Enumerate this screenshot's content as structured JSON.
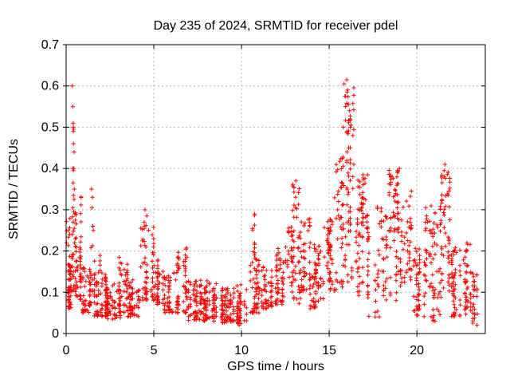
{
  "chart_data": {
    "type": "scatter",
    "title": "Day 235 of 2024, SRMTID for receiver pdel",
    "xlabel": "GPS time / hours",
    "ylabel": "SRMTID / TECUs",
    "xlim": [
      0,
      23.9
    ],
    "ylim": [
      0,
      0.7
    ],
    "xticks": {
      "values": [
        0,
        5,
        10,
        15,
        20
      ],
      "labels": [
        "0",
        "5",
        "10",
        "15",
        "20"
      ]
    },
    "yticks": {
      "values": [
        0,
        0.1,
        0.2,
        0.3,
        0.4,
        0.5,
        0.6,
        0.7
      ],
      "labels": [
        "0",
        "0.1",
        "0.2",
        "0.3",
        "0.4",
        "0.5",
        "0.6",
        "0.7"
      ]
    },
    "grid": true,
    "legend": "none",
    "marker": "plus",
    "marker_color": "#ff0000",
    "grid_color": "#b0b0b0",
    "axis_color": "#000000",
    "background_color": "#ffffff",
    "seed": 235,
    "series": [
      {
        "name": "SRMTID for receiver pdel",
        "encoding": "density_bins",
        "bin_format": [
          "x_start_hr",
          "x_end_hr",
          "y_min_TECU",
          "y_max_TECU",
          "point_count",
          "low_bias_exponent"
        ],
        "bins": [
          [
            0.0,
            0.3,
            0.06,
            0.17,
            55,
            1.3
          ],
          [
            0.0,
            0.3,
            0.17,
            0.28,
            10,
            1.0
          ],
          [
            0.3,
            0.6,
            0.1,
            0.3,
            28,
            1.2
          ],
          [
            0.55,
            0.9,
            0.08,
            0.22,
            32,
            1.5
          ],
          [
            0.6,
            0.95,
            0.22,
            0.35,
            8,
            1.0
          ],
          [
            0.9,
            1.4,
            0.05,
            0.16,
            48,
            1.4
          ],
          [
            1.4,
            1.65,
            0.07,
            0.22,
            16,
            1.2
          ],
          [
            1.6,
            2.3,
            0.04,
            0.15,
            68,
            1.4
          ],
          [
            1.8,
            2.05,
            0.15,
            0.19,
            5,
            1.0
          ],
          [
            2.3,
            3.1,
            0.03,
            0.12,
            72,
            1.3
          ],
          [
            3.0,
            3.5,
            0.05,
            0.19,
            38,
            1.5
          ],
          [
            3.5,
            4.2,
            0.04,
            0.14,
            58,
            1.4
          ],
          [
            4.2,
            5.0,
            0.08,
            0.27,
            58,
            1.8
          ],
          [
            5.0,
            5.6,
            0.07,
            0.18,
            42,
            1.5
          ],
          [
            5.6,
            6.1,
            0.05,
            0.14,
            42,
            1.3
          ],
          [
            6.1,
            6.9,
            0.05,
            0.21,
            58,
            1.7
          ],
          [
            6.9,
            7.7,
            0.03,
            0.13,
            68,
            1.4
          ],
          [
            7.7,
            8.7,
            0.03,
            0.13,
            82,
            1.5
          ],
          [
            8.7,
            9.7,
            0.025,
            0.11,
            82,
            1.4
          ],
          [
            9.7,
            10.3,
            0.02,
            0.12,
            52,
            1.3
          ],
          [
            10.3,
            11.1,
            0.05,
            0.2,
            58,
            1.6
          ],
          [
            10.5,
            11.1,
            0.2,
            0.29,
            8,
            1.0
          ],
          [
            11.1,
            11.8,
            0.06,
            0.17,
            52,
            1.4
          ],
          [
            11.8,
            12.5,
            0.07,
            0.21,
            52,
            1.4
          ],
          [
            12.5,
            12.9,
            0.1,
            0.26,
            28,
            1.2
          ],
          [
            12.9,
            13.4,
            0.07,
            0.37,
            52,
            1.0
          ],
          [
            13.4,
            13.9,
            0.1,
            0.28,
            38,
            1.3
          ],
          [
            13.9,
            14.7,
            0.06,
            0.22,
            62,
            1.4
          ],
          [
            14.7,
            15.3,
            0.1,
            0.28,
            52,
            0.9
          ],
          [
            15.3,
            15.85,
            0.1,
            0.43,
            45,
            1.1
          ],
          [
            15.85,
            16.45,
            0.2,
            0.6,
            55,
            1.0
          ],
          [
            15.85,
            16.45,
            0.12,
            0.2,
            10,
            1.0
          ],
          [
            16.45,
            17.2,
            0.25,
            0.385,
            42,
            0.9
          ],
          [
            16.45,
            17.4,
            0.08,
            0.25,
            32,
            1.2
          ],
          [
            17.2,
            17.95,
            0.04,
            0.27,
            30,
            1.5
          ],
          [
            17.6,
            18.0,
            0.25,
            0.32,
            8,
            1.0
          ],
          [
            17.95,
            18.35,
            0.08,
            0.3,
            24,
            1.2
          ],
          [
            18.35,
            19.1,
            0.22,
            0.4,
            52,
            0.9
          ],
          [
            18.35,
            19.1,
            0.08,
            0.22,
            20,
            1.2
          ],
          [
            19.1,
            19.75,
            0.12,
            0.35,
            42,
            1.1
          ],
          [
            19.75,
            20.45,
            0.04,
            0.22,
            48,
            1.4
          ],
          [
            20.45,
            20.8,
            0.08,
            0.29,
            22,
            1.1
          ],
          [
            20.8,
            21.4,
            0.03,
            0.31,
            52,
            1.2
          ],
          [
            21.4,
            21.95,
            0.1,
            0.4,
            50,
            1.0
          ],
          [
            21.95,
            22.6,
            0.04,
            0.21,
            50,
            1.4
          ],
          [
            22.6,
            23.1,
            0.04,
            0.22,
            42,
            1.3
          ],
          [
            23.1,
            23.45,
            0.02,
            0.15,
            26,
            1.2
          ]
        ],
        "outlier_points": [
          [
            0.35,
            0.6
          ],
          [
            0.38,
            0.55
          ],
          [
            0.4,
            0.51
          ],
          [
            0.42,
            0.5
          ],
          [
            0.43,
            0.495
          ],
          [
            0.41,
            0.49
          ],
          [
            0.42,
            0.46
          ],
          [
            0.45,
            0.44
          ],
          [
            0.38,
            0.4
          ],
          [
            0.42,
            0.395
          ],
          [
            0.44,
            0.4
          ],
          [
            0.4,
            0.365
          ],
          [
            0.47,
            0.35
          ],
          [
            0.42,
            0.335
          ],
          [
            0.45,
            0.325
          ],
          [
            0.38,
            0.305
          ],
          [
            0.43,
            0.295
          ],
          [
            0.5,
            0.29
          ],
          [
            0.4,
            0.27
          ],
          [
            0.46,
            0.255
          ],
          [
            0.36,
            0.24
          ],
          [
            0.52,
            0.23
          ],
          [
            0.48,
            0.22
          ],
          [
            1.45,
            0.35
          ],
          [
            1.5,
            0.33
          ],
          [
            1.47,
            0.305
          ],
          [
            1.52,
            0.26
          ],
          [
            1.55,
            0.25
          ],
          [
            4.5,
            0.3
          ],
          [
            4.6,
            0.285
          ],
          [
            4.45,
            0.27
          ],
          [
            4.7,
            0.25
          ],
          [
            13.1,
            0.37
          ],
          [
            16.0,
            0.615
          ],
          [
            15.85,
            0.605
          ],
          [
            16.05,
            0.59
          ],
          [
            15.9,
            0.575
          ],
          [
            16.1,
            0.555
          ],
          [
            16.15,
            0.54
          ],
          [
            16.2,
            0.52
          ],
          [
            16.25,
            0.505
          ],
          [
            15.8,
            0.5
          ],
          [
            19.0,
            0.4
          ],
          [
            20.5,
            0.305
          ],
          [
            20.55,
            0.285
          ],
          [
            20.6,
            0.27
          ],
          [
            21.6,
            0.41
          ],
          [
            21.55,
            0.395
          ],
          [
            22.85,
            0.22
          ],
          [
            23.2,
            0.145
          ]
        ]
      }
    ]
  }
}
